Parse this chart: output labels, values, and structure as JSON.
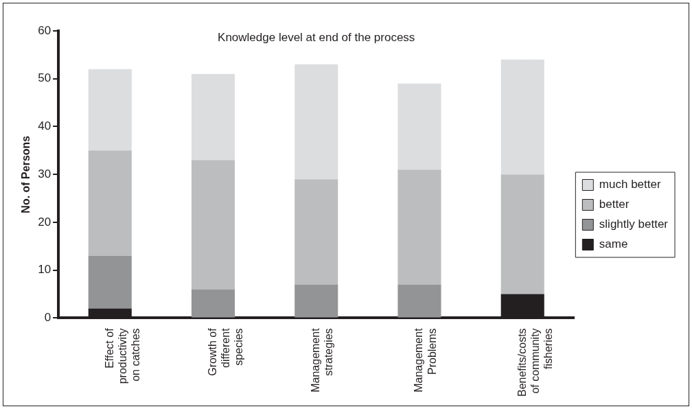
{
  "chart_data": {
    "type": "bar",
    "stacked": true,
    "title": "Knowledge level at end of the process",
    "ylabel": "No. of Persons",
    "categories": [
      "Effect of\nproductivity\non catches",
      "Growth of\ndifferent\nspecies",
      "Management\nstrategies",
      "Management\nProblems",
      "Benefits/costs\nof community\nfisheries"
    ],
    "series": [
      {
        "name": "same",
        "color": "#231f20",
        "values": [
          2,
          0,
          0,
          0,
          5
        ]
      },
      {
        "name": "slightly better",
        "color": "#939496",
        "values": [
          11,
          6,
          7,
          7,
          0
        ]
      },
      {
        "name": "better",
        "color": "#bcbdbf",
        "values": [
          22,
          27,
          22,
          24,
          25
        ]
      },
      {
        "name": "much better",
        "color": "#dcdddf",
        "values": [
          17,
          18,
          24,
          18,
          24
        ]
      }
    ],
    "ylim": [
      0,
      60
    ],
    "yticks": [
      0,
      10,
      20,
      30,
      40,
      50,
      60
    ],
    "grid": false,
    "legend": "right"
  }
}
